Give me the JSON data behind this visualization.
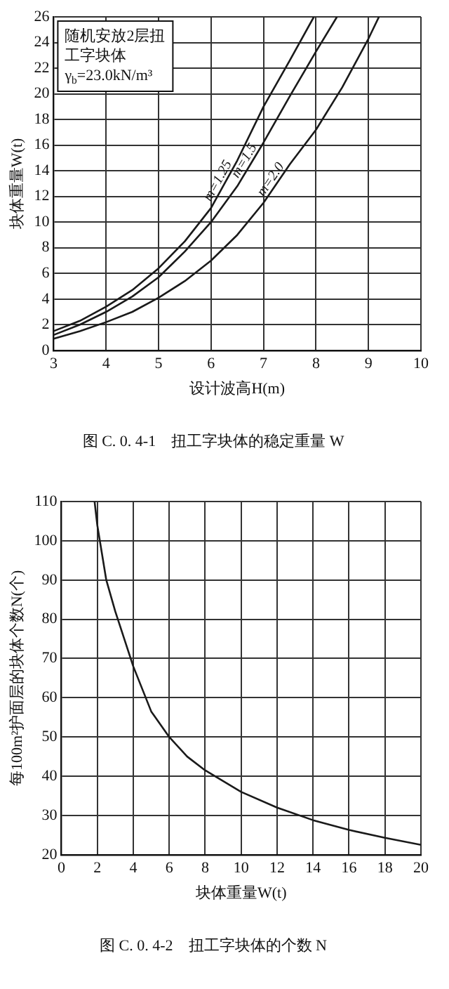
{
  "chart_data": [
    {
      "type": "line",
      "title": "图 C. 0. 4-1　扭工字块体的稳定重量 W",
      "xlabel": "设计波高H(m)",
      "ylabel": "块体重量W(t)",
      "annotations": [
        "随机安放2层扭工字块体",
        "γ$_{b}$=23.0kN/m³"
      ],
      "series": [
        {
          "name": "m=1.25",
          "color": "#1a1a1a",
          "x": [
            3,
            3.5,
            4,
            4.5,
            5,
            5.5,
            6,
            6.5,
            7,
            7.5,
            7.96
          ],
          "values": [
            1.5,
            2.3,
            3.4,
            4.7,
            6.4,
            8.5,
            11.1,
            14.8,
            19,
            22.6,
            26
          ]
        },
        {
          "name": "m=1.5",
          "color": "#1a1a1a",
          "x": [
            3,
            3.5,
            4,
            4.5,
            5,
            5.5,
            6,
            6.5,
            7,
            7.5,
            8,
            8.4
          ],
          "values": [
            1.2,
            2,
            3,
            4.2,
            5.7,
            7.7,
            10,
            12.8,
            16.2,
            19.8,
            23.3,
            26
          ]
        },
        {
          "name": "m=2.0",
          "color": "#1a1a1a",
          "x": [
            3,
            3.5,
            4,
            4.5,
            5,
            5.5,
            6,
            6.5,
            7,
            7.5,
            8,
            8.5,
            9,
            9.2
          ],
          "values": [
            0.9,
            1.5,
            2.2,
            3,
            4.1,
            5.4,
            7,
            9,
            11.5,
            14.5,
            17.2,
            20.5,
            24.3,
            26
          ]
        }
      ],
      "xlim": [
        3,
        10
      ],
      "xticks": [
        3,
        4,
        5,
        6,
        7,
        8,
        9,
        10
      ],
      "ylim": [
        0,
        26
      ],
      "yticks": [
        0,
        2,
        4,
        6,
        8,
        10,
        12,
        14,
        16,
        18,
        20,
        22,
        24,
        26
      ],
      "grid": true,
      "legend": false,
      "marker": "none",
      "line_style": "solid"
    },
    {
      "type": "line",
      "title": "图 C. 0. 4-2　扭工字块体的个数 N",
      "xlabel": "块体重量W(t)",
      "ylabel": "每100m²护面层的块体个数N(个)",
      "series": [
        {
          "color": "#1a1a1a",
          "x": [
            1.85,
            2,
            2.5,
            3,
            4,
            5,
            6,
            7,
            8,
            10,
            12,
            14,
            16,
            18,
            20
          ],
          "values": [
            110,
            104,
            90,
            82,
            68,
            56.5,
            50,
            45,
            41.5,
            36,
            32,
            28.8,
            26.3,
            24.3,
            22.5
          ]
        }
      ],
      "xlim": [
        0,
        20
      ],
      "xticks": [
        0,
        2,
        4,
        6,
        8,
        10,
        12,
        14,
        16,
        18,
        20
      ],
      "ylim": [
        20,
        110
      ],
      "yticks": [
        20,
        30,
        40,
        50,
        60,
        70,
        80,
        90,
        100,
        110
      ],
      "grid": true,
      "legend": false,
      "marker": "none",
      "line_style": "solid"
    }
  ]
}
